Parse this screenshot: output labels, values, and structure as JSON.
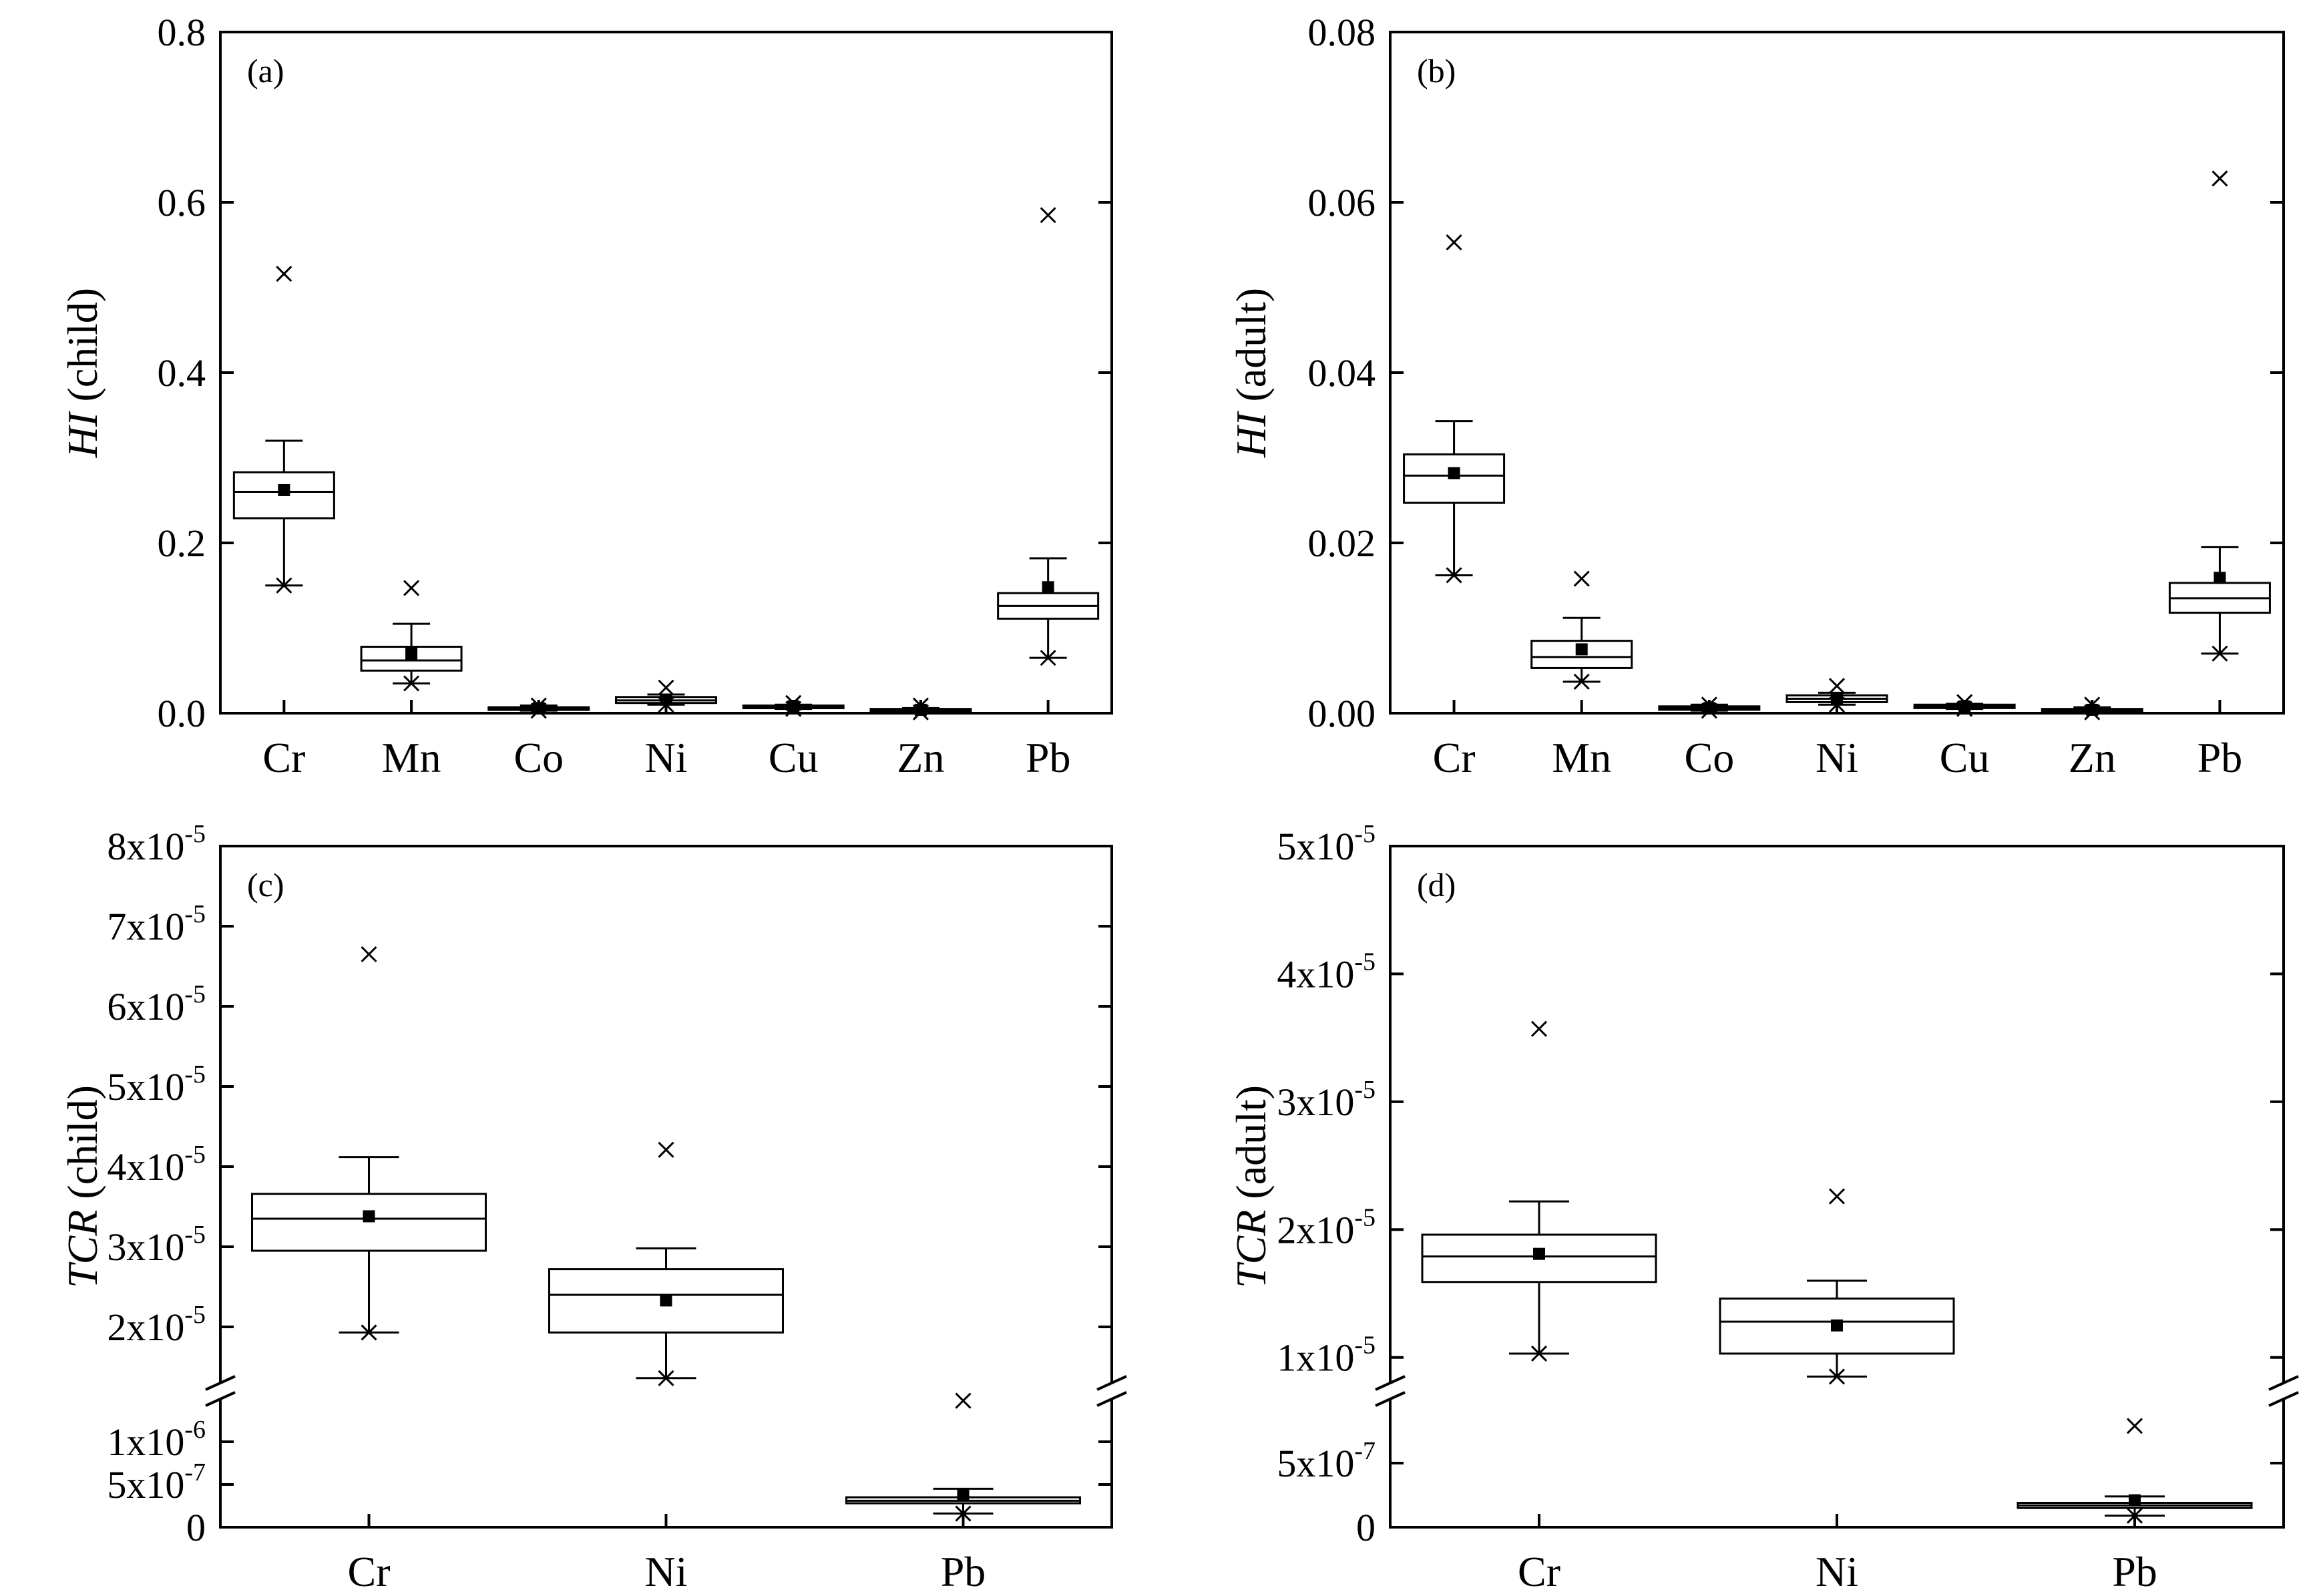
{
  "chart_data": [
    {
      "panel": "(a)",
      "type": "box",
      "ylabel_italic": "HI",
      "ylabel_rest": " (child)",
      "categories": [
        "Cr",
        "Mn",
        "Co",
        "Ni",
        "Cu",
        "Zn",
        "Pb"
      ],
      "ylim": [
        0,
        0.8
      ],
      "yticks": [
        {
          "v": 0,
          "label": "0.0"
        },
        {
          "v": 0.2,
          "label": "0.2"
        },
        {
          "v": 0.4,
          "label": "0.4"
        },
        {
          "v": 0.6,
          "label": "0.6"
        },
        {
          "v": 0.8,
          "label": "0.8"
        }
      ],
      "boxes": [
        {
          "cat": "Cr",
          "q1": 0.229,
          "median": 0.26,
          "q3": 0.283,
          "mean": 0.262,
          "whisker_low": 0.15,
          "whisker_high": 0.32,
          "min": 0.15,
          "max": 0.516
        },
        {
          "cat": "Mn",
          "q1": 0.05,
          "median": 0.062,
          "q3": 0.078,
          "mean": 0.07,
          "whisker_low": 0.035,
          "whisker_high": 0.105,
          "min": 0.035,
          "max": 0.147
        },
        {
          "cat": "Co",
          "q1": 0.004,
          "median": 0.006,
          "q3": 0.007,
          "mean": 0.006,
          "whisker_low": 0.003,
          "whisker_high": 0.009,
          "min": 0.003,
          "max": 0.009
        },
        {
          "cat": "Ni",
          "q1": 0.012,
          "median": 0.015,
          "q3": 0.019,
          "mean": 0.016,
          "whisker_low": 0.01,
          "whisker_high": 0.022,
          "min": 0.01,
          "max": 0.03
        },
        {
          "cat": "Cu",
          "q1": 0.006,
          "median": 0.007,
          "q3": 0.009,
          "mean": 0.008,
          "whisker_low": 0.005,
          "whisker_high": 0.01,
          "min": 0.005,
          "max": 0.012
        },
        {
          "cat": "Zn",
          "q1": 0.002,
          "median": 0.003,
          "q3": 0.005,
          "mean": 0.004,
          "whisker_low": 0.001,
          "whisker_high": 0.006,
          "min": 0.001,
          "max": 0.009
        },
        {
          "cat": "Pb",
          "q1": 0.111,
          "median": 0.126,
          "q3": 0.141,
          "mean": 0.148,
          "whisker_low": 0.065,
          "whisker_high": 0.182,
          "min": 0.065,
          "max": 0.585
        }
      ]
    },
    {
      "panel": "(b)",
      "type": "box",
      "ylabel_italic": "HI",
      "ylabel_rest": " (adult)",
      "categories": [
        "Cr",
        "Mn",
        "Co",
        "Ni",
        "Cu",
        "Zn",
        "Pb"
      ],
      "ylim": [
        0,
        0.08
      ],
      "yticks": [
        {
          "v": 0,
          "label": "0.00"
        },
        {
          "v": 0.02,
          "label": "0.02"
        },
        {
          "v": 0.04,
          "label": "0.04"
        },
        {
          "v": 0.06,
          "label": "0.06"
        },
        {
          "v": 0.08,
          "label": "0.08"
        }
      ],
      "boxes": [
        {
          "cat": "Cr",
          "q1": 0.0247,
          "median": 0.0279,
          "q3": 0.0304,
          "mean": 0.0282,
          "whisker_low": 0.0162,
          "whisker_high": 0.0343,
          "min": 0.0162,
          "max": 0.0553
        },
        {
          "cat": "Mn",
          "q1": 0.0053,
          "median": 0.0066,
          "q3": 0.0085,
          "mean": 0.0075,
          "whisker_low": 0.0037,
          "whisker_high": 0.0112,
          "min": 0.0037,
          "max": 0.0158
        },
        {
          "cat": "Co",
          "q1": 0.0004,
          "median": 0.0006,
          "q3": 0.0008,
          "mean": 0.0006,
          "whisker_low": 0.0003,
          "whisker_high": 0.001,
          "min": 0.0003,
          "max": 0.001
        },
        {
          "cat": "Ni",
          "q1": 0.0013,
          "median": 0.0017,
          "q3": 0.0021,
          "mean": 0.0017,
          "whisker_low": 0.001,
          "whisker_high": 0.0024,
          "min": 0.001,
          "max": 0.0032
        },
        {
          "cat": "Cu",
          "q1": 0.0006,
          "median": 0.0008,
          "q3": 0.001,
          "mean": 0.0008,
          "whisker_low": 0.0005,
          "whisker_high": 0.0011,
          "min": 0.0005,
          "max": 0.0013
        },
        {
          "cat": "Zn",
          "q1": 0.0002,
          "median": 0.0003,
          "q3": 0.0005,
          "mean": 0.0004,
          "whisker_low": 0.0001,
          "whisker_high": 0.0007,
          "min": 0.0001,
          "max": 0.001
        },
        {
          "cat": "Pb",
          "q1": 0.0118,
          "median": 0.0135,
          "q3": 0.0153,
          "mean": 0.0159,
          "whisker_low": 0.007,
          "whisker_high": 0.0195,
          "min": 0.007,
          "max": 0.0628
        }
      ]
    },
    {
      "panel": "(c)",
      "type": "box",
      "ylabel_italic": "TCR",
      "ylabel_rest": " (child)",
      "categories": [
        "Cr",
        "Ni",
        "Pb"
      ],
      "broken_axis": true,
      "lower_segment": {
        "range": [
          0,
          1.5e-06
        ]
      },
      "upper_segment": {
        "range": [
          1.3e-05,
          8e-05
        ]
      },
      "yticks": [
        {
          "v": 0,
          "base": "0",
          "exp": ""
        },
        {
          "v": 5e-07,
          "base": "5x10",
          "exp": "-7"
        },
        {
          "v": 1e-06,
          "base": "1x10",
          "exp": "-6"
        },
        {
          "v": 2e-05,
          "base": "2x10",
          "exp": "-5"
        },
        {
          "v": 3e-05,
          "base": "3x10",
          "exp": "-5"
        },
        {
          "v": 4e-05,
          "base": "4x10",
          "exp": "-5"
        },
        {
          "v": 5e-05,
          "base": "5x10",
          "exp": "-5"
        },
        {
          "v": 6e-05,
          "base": "6x10",
          "exp": "-5"
        },
        {
          "v": 7e-05,
          "base": "7x10",
          "exp": "-5"
        },
        {
          "v": 8e-05,
          "base": "8x10",
          "exp": "-5"
        }
      ],
      "boxes": [
        {
          "cat": "Cr",
          "q1": 2.95e-05,
          "median": 3.35e-05,
          "q3": 3.66e-05,
          "mean": 3.38e-05,
          "whisker_low": 1.93e-05,
          "whisker_high": 4.12e-05,
          "min": 1.93e-05,
          "max": 6.65e-05
        },
        {
          "cat": "Ni",
          "q1": 1.93e-05,
          "median": 2.4e-05,
          "q3": 2.72e-05,
          "mean": 2.33e-05,
          "whisker_low": 1.36e-05,
          "whisker_high": 2.98e-05,
          "min": 1.36e-05,
          "max": 4.21e-05
        },
        {
          "cat": "Pb",
          "q1": 2.8e-07,
          "median": 3.1e-07,
          "q3": 3.5e-07,
          "mean": 3.9e-07,
          "whisker_low": 1.6e-07,
          "whisker_high": 4.5e-07,
          "min": 1.6e-07,
          "max": 1.48e-06
        }
      ]
    },
    {
      "panel": "(d)",
      "type": "box",
      "ylabel_italic": "TCR",
      "ylabel_rest": " (adult)",
      "categories": [
        "Cr",
        "Ni",
        "Pb"
      ],
      "broken_axis": true,
      "lower_segment": {
        "range": [
          0,
          1e-06
        ]
      },
      "upper_segment": {
        "range": [
          8e-06,
          5e-05
        ]
      },
      "yticks": [
        {
          "v": 0,
          "base": "0",
          "exp": ""
        },
        {
          "v": 5e-07,
          "base": "5x10",
          "exp": "-7"
        },
        {
          "v": 1e-05,
          "base": "1x10",
          "exp": "-5"
        },
        {
          "v": 2e-05,
          "base": "2x10",
          "exp": "-5"
        },
        {
          "v": 3e-05,
          "base": "3x10",
          "exp": "-5"
        },
        {
          "v": 4e-05,
          "base": "4x10",
          "exp": "-5"
        },
        {
          "v": 5e-05,
          "base": "5x10",
          "exp": "-5"
        }
      ],
      "boxes": [
        {
          "cat": "Cr",
          "q1": 1.59e-05,
          "median": 1.79e-05,
          "q3": 1.96e-05,
          "mean": 1.81e-05,
          "whisker_low": 1.03e-05,
          "whisker_high": 2.22e-05,
          "min": 1.03e-05,
          "max": 3.57e-05
        },
        {
          "cat": "Ni",
          "q1": 1.03e-05,
          "median": 1.28e-05,
          "q3": 1.46e-05,
          "mean": 1.25e-05,
          "whisker_low": 8.5e-06,
          "whisker_high": 1.6e-05,
          "min": 8.5e-06,
          "max": 2.26e-05
        },
        {
          "cat": "Pb",
          "q1": 1.5e-07,
          "median": 1.7e-07,
          "q3": 1.9e-07,
          "mean": 2.1e-07,
          "whisker_low": 9e-08,
          "whisker_high": 2.4e-07,
          "min": 9e-08,
          "max": 7.9e-07
        }
      ]
    }
  ]
}
